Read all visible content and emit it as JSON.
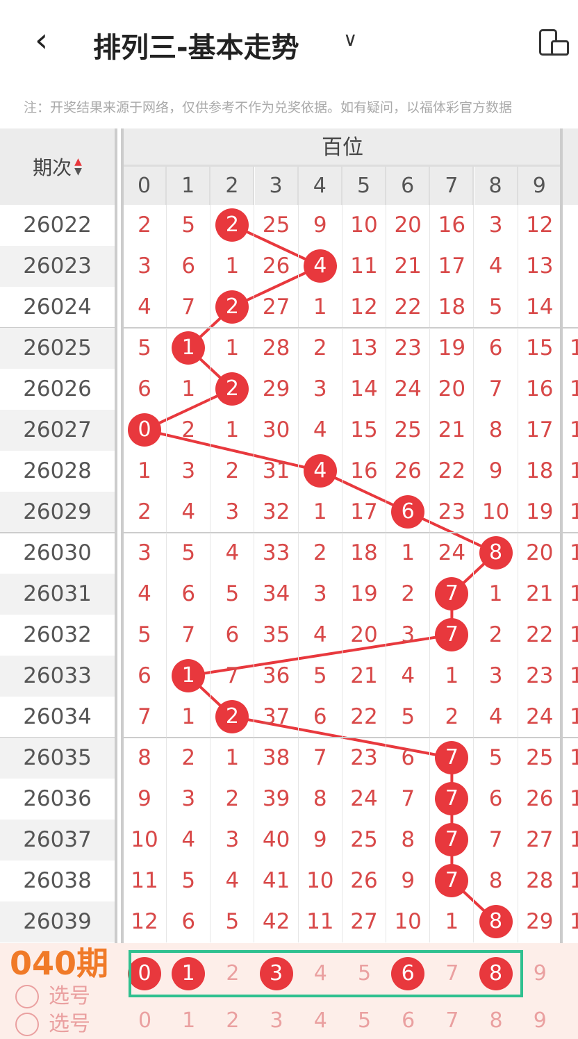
{
  "header": {
    "title": "排列三-基本走势",
    "back_icon": "chevron-left-icon",
    "dropdown_icon": "chevron-down-icon",
    "device_icon": "device-rotate-icon"
  },
  "note": "注：开奖结果来源于网络，仅供参考不作为兑奖依据。如有疑问，以福体彩官方数据",
  "table": {
    "period_header": "期次",
    "group_header": "百位",
    "digits": [
      "0",
      "1",
      "2",
      "3",
      "4",
      "5",
      "6",
      "7",
      "8",
      "9"
    ],
    "rows": [
      {
        "period": "26022",
        "cells": [
          "2",
          "5",
          "2",
          "25",
          "9",
          "10",
          "20",
          "16",
          "3",
          "12"
        ],
        "hit": 2
      },
      {
        "period": "26023",
        "cells": [
          "3",
          "6",
          "1",
          "26",
          "4",
          "11",
          "21",
          "17",
          "4",
          "13"
        ],
        "hit": 4
      },
      {
        "period": "26024",
        "cells": [
          "4",
          "7",
          "2",
          "27",
          "1",
          "12",
          "22",
          "18",
          "5",
          "14"
        ],
        "hit": 2
      },
      {
        "period": "26025",
        "cells": [
          "5",
          "1",
          "1",
          "28",
          "2",
          "13",
          "23",
          "19",
          "6",
          "15"
        ],
        "hit": 1
      },
      {
        "period": "26026",
        "cells": [
          "6",
          "1",
          "2",
          "29",
          "3",
          "14",
          "24",
          "20",
          "7",
          "16"
        ],
        "hit": 2
      },
      {
        "period": "26027",
        "cells": [
          "0",
          "2",
          "1",
          "30",
          "4",
          "15",
          "25",
          "21",
          "8",
          "17"
        ],
        "hit": 0
      },
      {
        "period": "26028",
        "cells": [
          "1",
          "3",
          "2",
          "31",
          "4",
          "16",
          "26",
          "22",
          "9",
          "18"
        ],
        "hit": 4
      },
      {
        "period": "26029",
        "cells": [
          "2",
          "4",
          "3",
          "32",
          "1",
          "17",
          "6",
          "23",
          "10",
          "19"
        ],
        "hit": 6
      },
      {
        "period": "26030",
        "cells": [
          "3",
          "5",
          "4",
          "33",
          "2",
          "18",
          "1",
          "24",
          "8",
          "20"
        ],
        "hit": 8
      },
      {
        "period": "26031",
        "cells": [
          "4",
          "6",
          "5",
          "34",
          "3",
          "19",
          "2",
          "7",
          "1",
          "21"
        ],
        "hit": 7
      },
      {
        "period": "26032",
        "cells": [
          "5",
          "7",
          "6",
          "35",
          "4",
          "20",
          "3",
          "7",
          "2",
          "22"
        ],
        "hit": 7
      },
      {
        "period": "26033",
        "cells": [
          "6",
          "1",
          "7",
          "36",
          "5",
          "21",
          "4",
          "1",
          "3",
          "23"
        ],
        "hit": 1
      },
      {
        "period": "26034",
        "cells": [
          "7",
          "1",
          "2",
          "37",
          "6",
          "22",
          "5",
          "2",
          "4",
          "24"
        ],
        "hit": 2
      },
      {
        "period": "26035",
        "cells": [
          "8",
          "2",
          "1",
          "38",
          "7",
          "23",
          "6",
          "7",
          "5",
          "25"
        ],
        "hit": 7
      },
      {
        "period": "26036",
        "cells": [
          "9",
          "3",
          "2",
          "39",
          "8",
          "24",
          "7",
          "7",
          "6",
          "26"
        ],
        "hit": 7
      },
      {
        "period": "26037",
        "cells": [
          "10",
          "4",
          "3",
          "40",
          "9",
          "25",
          "8",
          "7",
          "7",
          "27"
        ],
        "hit": 7
      },
      {
        "period": "26038",
        "cells": [
          "11",
          "5",
          "4",
          "41",
          "10",
          "26",
          "9",
          "7",
          "8",
          "28"
        ],
        "hit": 7
      },
      {
        "period": "26039",
        "cells": [
          "12",
          "6",
          "5",
          "42",
          "11",
          "27",
          "10",
          "1",
          "8",
          "29"
        ],
        "hit": 8
      }
    ]
  },
  "selection": {
    "overlay_label": "040期",
    "pick_label": "选号",
    "picks": [
      "0",
      "1",
      "2",
      "3",
      "4",
      "5",
      "6",
      "7",
      "8",
      "9"
    ],
    "selected": [
      0,
      1,
      3,
      6,
      8
    ]
  },
  "colors": {
    "accent": "#e8383d",
    "highlight_box": "#2fc08f",
    "overlay_text": "#f07a28"
  }
}
